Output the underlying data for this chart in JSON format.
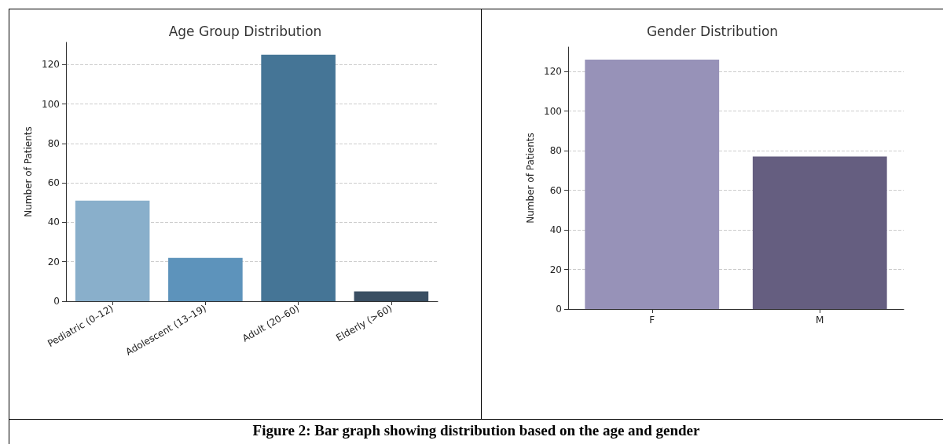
{
  "chart_data": [
    {
      "type": "bar",
      "title": "Age Group Distribution",
      "ylabel": "Number of Patients",
      "categories": [
        "Pediatric (0–12)",
        "Adolescent (13–19)",
        "Adult (20–60)",
        "Elderly (>60)"
      ],
      "values": [
        51,
        22,
        125,
        5
      ],
      "colors": [
        "#89afcb",
        "#5d93bb",
        "#457596",
        "#3a4f63"
      ],
      "ylim": [
        0,
        131.25
      ],
      "yticks": [
        0,
        20,
        40,
        60,
        80,
        100,
        120
      ],
      "grid": "y",
      "annotations": [
        "Figure 2: Bar graph showing distribution based on the age and gender"
      ]
    },
    {
      "type": "bar",
      "title": "Gender Distribution",
      "ylabel": "Number of Patients",
      "categories": [
        "F",
        "M"
      ],
      "values": [
        126,
        77
      ],
      "colors": [
        "#9792b8",
        "#655e80"
      ],
      "ylim": [
        0,
        132.3
      ],
      "yticks": [
        0,
        20,
        40,
        60,
        80,
        100,
        120
      ],
      "grid": "y"
    }
  ]
}
